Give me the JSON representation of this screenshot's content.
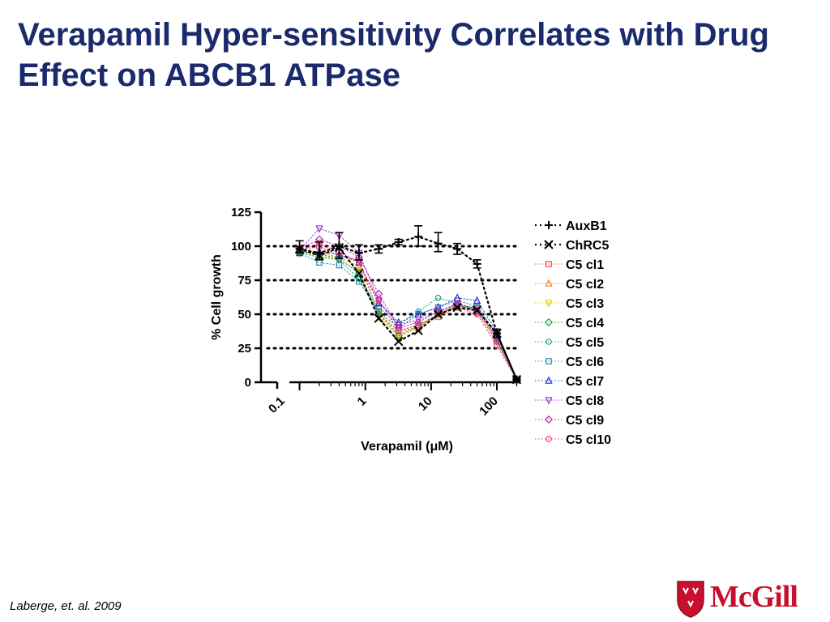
{
  "slide": {
    "title": "Verapamil Hyper-sensitivity Correlates with Drug Effect on ABCB1 ATPase",
    "citation": "Laberge, et. al. 2009",
    "logo_text": "McGill",
    "logo_color": "#c8102e",
    "title_color": "#1a2a6c"
  },
  "chart_data": {
    "type": "line",
    "title": "",
    "xlabel": "Verapamil (μM)",
    "ylabel": "% Cell growth",
    "x_scale": "log",
    "x_tick_labels": [
      "0.1",
      "1",
      "10",
      "100"
    ],
    "x_tick_values": [
      0.1,
      1,
      10,
      100
    ],
    "y_ticks": [
      0,
      25,
      50,
      75,
      100,
      125
    ],
    "ylim": [
      0,
      125
    ],
    "reference_lines_y": [
      25,
      50,
      75,
      100
    ],
    "legend_position": "right",
    "x": [
      0.1,
      0.2,
      0.4,
      0.8,
      1.6,
      3.2,
      6.4,
      12.8,
      25,
      50,
      100,
      200
    ],
    "series": [
      {
        "name": "AuxB1",
        "color": "#000000",
        "marker": "plus",
        "values": [
          98,
          95,
          100,
          95,
          98,
          103,
          107,
          102,
          98,
          87,
          36,
          2
        ]
      },
      {
        "name": "ChRC5",
        "color": "#000000",
        "marker": "x",
        "values": [
          98,
          93,
          99,
          80,
          47,
          30,
          38,
          50,
          55,
          53,
          36,
          2
        ]
      },
      {
        "name": "C5 cl1",
        "color": "#e8474f",
        "marker": "square",
        "values": [
          97,
          100,
          93,
          90,
          50,
          38,
          40,
          50,
          57,
          53,
          33,
          2
        ]
      },
      {
        "name": "C5 cl2",
        "color": "#f08a24",
        "marker": "triangle",
        "values": [
          96,
          95,
          92,
          85,
          52,
          35,
          42,
          48,
          55,
          52,
          30,
          2
        ]
      },
      {
        "name": "C5 cl3",
        "color": "#e0c800",
        "marker": "triangle-down",
        "values": [
          95,
          93,
          90,
          82,
          48,
          33,
          40,
          50,
          57,
          54,
          31,
          2
        ]
      },
      {
        "name": "C5 cl4",
        "color": "#1f9a2e",
        "marker": "diamond",
        "values": [
          96,
          94,
          91,
          80,
          50,
          34,
          41,
          50,
          56,
          55,
          32,
          2
        ]
      },
      {
        "name": "C5 cl5",
        "color": "#1aa37a",
        "marker": "circle",
        "values": [
          95,
          92,
          90,
          76,
          55,
          42,
          52,
          62,
          58,
          53,
          34,
          2
        ]
      },
      {
        "name": "C5 cl6",
        "color": "#1c8fb0",
        "marker": "square",
        "values": [
          95,
          88,
          86,
          74,
          52,
          40,
          50,
          55,
          60,
          56,
          35,
          2
        ]
      },
      {
        "name": "C5 cl7",
        "color": "#2433c8",
        "marker": "triangle",
        "values": [
          95,
          96,
          94,
          88,
          58,
          44,
          50,
          55,
          62,
          60,
          37,
          2
        ]
      },
      {
        "name": "C5 cl8",
        "color": "#9b2fd4",
        "marker": "triangle-down",
        "values": [
          97,
          113,
          108,
          95,
          60,
          42,
          46,
          52,
          58,
          54,
          33,
          2
        ]
      },
      {
        "name": "C5 cl9",
        "color": "#b02aa8",
        "marker": "diamond",
        "values": [
          98,
          105,
          100,
          92,
          65,
          40,
          44,
          52,
          57,
          52,
          30,
          2
        ]
      },
      {
        "name": "C5 cl10",
        "color": "#e6337a",
        "marker": "circle",
        "values": [
          97,
          102,
          96,
          88,
          60,
          38,
          42,
          50,
          55,
          50,
          27,
          2
        ]
      }
    ]
  }
}
